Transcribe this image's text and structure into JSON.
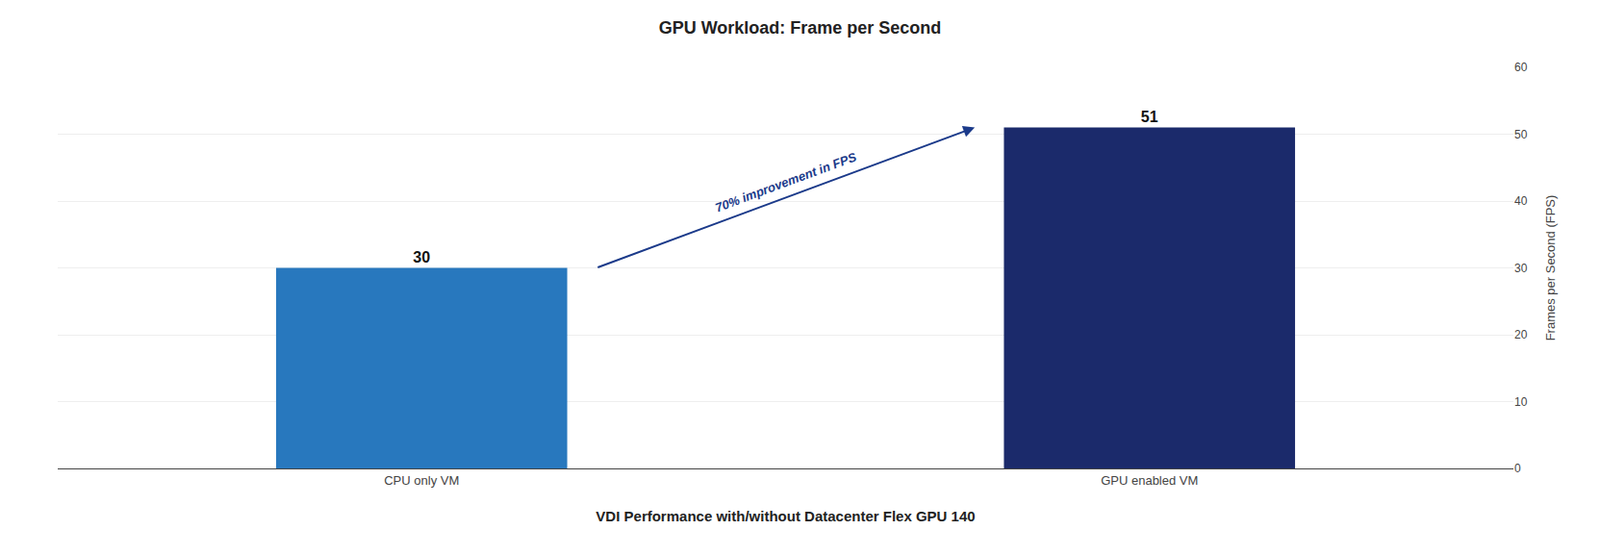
{
  "chart_data": {
    "type": "bar",
    "title": "GPU Workload: Frame per Second",
    "xlabel": "VDI Performance with/without Datacenter Flex GPU 140",
    "ylabel": "Frames per Second (FPS)",
    "categories": [
      "CPU only VM",
      "GPU enabled VM"
    ],
    "values": [
      30,
      51
    ],
    "colors": [
      "#2878BE",
      "#1B2A6B"
    ],
    "ylim": [
      0,
      60
    ],
    "yticks": [
      0,
      10,
      20,
      30,
      40,
      50,
      60
    ],
    "grid": true,
    "data_labels": true,
    "annotation": {
      "text": "70% improvement in FPS",
      "color": "#1B3A8A"
    }
  }
}
